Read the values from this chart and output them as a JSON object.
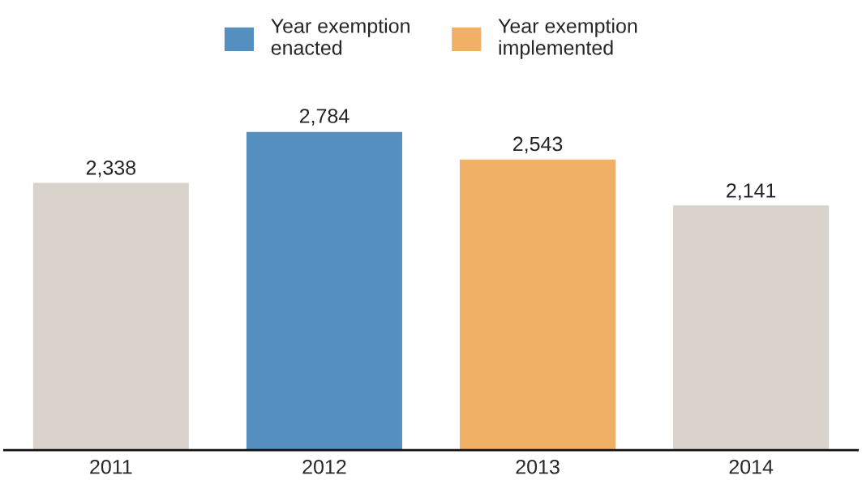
{
  "chart_data": {
    "type": "bar",
    "categories": [
      "2011",
      "2012",
      "2013",
      "2014"
    ],
    "stacked": true,
    "series": [
      {
        "color": "#d9d3cc",
        "values": [
          2338,
          null,
          null,
          2141
        ],
        "value_labels": [
          "2,338",
          null,
          null,
          "2,141"
        ]
      },
      {
        "name": "Year exemption enacted",
        "color": "#548fbf",
        "values": [
          null,
          2784,
          null,
          null
        ],
        "value_labels": [
          null,
          "2,784",
          null,
          null
        ]
      },
      {
        "name": "Year exemption implemented",
        "color": "#f0b066",
        "values": [
          null,
          null,
          2543,
          null
        ],
        "value_labels": [
          null,
          null,
          "2,543",
          null
        ]
      }
    ],
    "legend": "top",
    "tick_labels": "x",
    "grid": false
  }
}
